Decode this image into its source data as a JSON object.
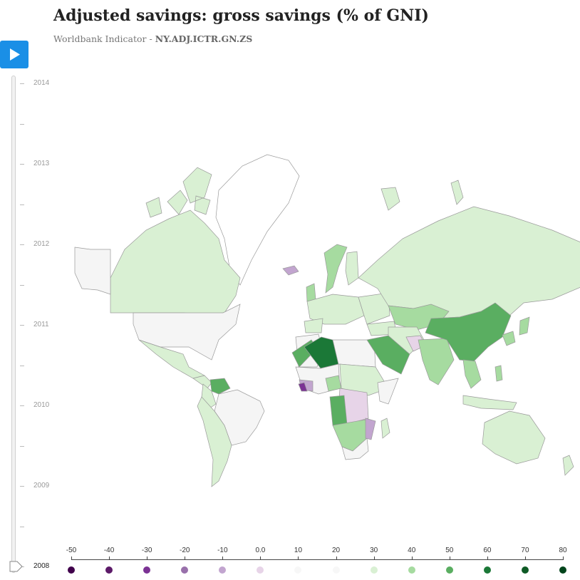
{
  "title": "Adjusted savings: gross savings (% of GNI)",
  "subtitle_prefix": "Worldbank Indicator - ",
  "subtitle_code": "NY.ADJ.ICTR.GN.ZS",
  "play_icon": "play-icon",
  "timeline": {
    "years": [
      "2014",
      "2013",
      "2012",
      "2011",
      "2010",
      "2009",
      "2008"
    ],
    "current_year": "2008"
  },
  "legend": {
    "labels": [
      "-50",
      "-40",
      "-30",
      "-20",
      "-10",
      "0.0",
      "10",
      "20",
      "30",
      "40",
      "50",
      "60",
      "70",
      "80"
    ],
    "colors": [
      "#40004b",
      "#5c1a68",
      "#7b3294",
      "#9970ab",
      "#c2a5cf",
      "#e7d4e8",
      "#f7f7f7",
      "#f7f7f7",
      "#d9f0d3",
      "#a6dba0",
      "#5aae61",
      "#1b7837",
      "#0e5a25",
      "#00441b"
    ]
  },
  "map_colors": {
    "none": "#ffffff",
    "neutral": "#f5f5f5",
    "pale_green": "#d9f0d3",
    "light_green": "#a6dba0",
    "mid_green": "#5aae61",
    "dark_green": "#1b7837",
    "pale_purple": "#e7d4e8",
    "light_purple": "#c2a5cf",
    "dark_purple": "#7b3294",
    "stroke": "#9a9a9a"
  }
}
